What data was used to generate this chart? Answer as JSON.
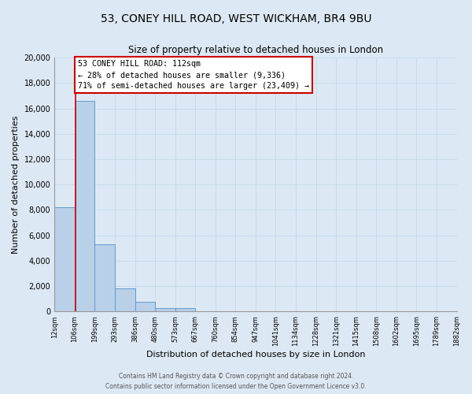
{
  "title": "53, CONEY HILL ROAD, WEST WICKHAM, BR4 9BU",
  "subtitle": "Size of property relative to detached houses in London",
  "xlabel": "Distribution of detached houses by size in London",
  "ylabel": "Number of detached properties",
  "bin_labels": [
    "12sqm",
    "106sqm",
    "199sqm",
    "293sqm",
    "386sqm",
    "480sqm",
    "573sqm",
    "667sqm",
    "760sqm",
    "854sqm",
    "947sqm",
    "1041sqm",
    "1134sqm",
    "1228sqm",
    "1321sqm",
    "1415sqm",
    "1508sqm",
    "1602sqm",
    "1695sqm",
    "1789sqm",
    "1882sqm"
  ],
  "bar_values": [
    8200,
    16600,
    5300,
    1800,
    750,
    280,
    280,
    0,
    0,
    0,
    0,
    0,
    0,
    0,
    0,
    0,
    0,
    0,
    0,
    0
  ],
  "bar_color": "#b8d0e8",
  "bar_edge_color": "#6699cc",
  "property_line_x": 1.06,
  "property_line_color": "#cc0000",
  "annotation_title": "53 CONEY HILL ROAD: 112sqm",
  "annotation_line1": "← 28% of detached houses are smaller (9,336)",
  "annotation_line2": "71% of semi-detached houses are larger (23,409) →",
  "annotation_box_color": "#ffffff",
  "annotation_box_edge_color": "#cc0000",
  "ylim": [
    0,
    20000
  ],
  "yticks": [
    0,
    2000,
    4000,
    6000,
    8000,
    10000,
    12000,
    14000,
    16000,
    18000,
    20000
  ],
  "grid_color": "#c5d8ea",
  "background_color": "#dce9f5",
  "footer_line1": "Contains HM Land Registry data © Crown copyright and database right 2024.",
  "footer_line2": "Contains public sector information licensed under the Open Government Licence v3.0."
}
